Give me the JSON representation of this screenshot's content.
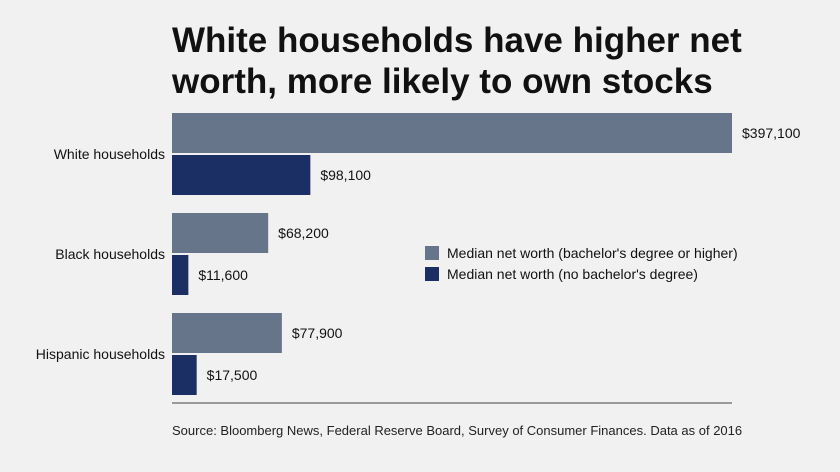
{
  "title": "White households have higher net worth, more likely to own stocks",
  "source": "Source: Bloomberg News, Federal Reserve Board, Survey of Consumer Finances. Data as of 2016",
  "chart_data": {
    "type": "bar",
    "orientation": "horizontal",
    "title": "White households have higher net worth, more likely to own stocks",
    "xlabel": "",
    "ylabel": "",
    "xlim": [
      0,
      397100
    ],
    "grid": false,
    "legend_position": "right",
    "categories": [
      "White households",
      "Black households",
      "Hispanic households"
    ],
    "series": [
      {
        "name": "Median net worth (bachelor's degree or higher)",
        "color": "#67758a",
        "values": [
          397100,
          68200,
          77900
        ],
        "labels": [
          "$397,100",
          "$68,200",
          "$77,900"
        ]
      },
      {
        "name": "Median net worth (no bachelor's degree)",
        "color": "#1b2f64",
        "values": [
          98100,
          11600,
          17500
        ],
        "labels": [
          "$98,100",
          "$11,600",
          "$17,500"
        ]
      }
    ]
  }
}
